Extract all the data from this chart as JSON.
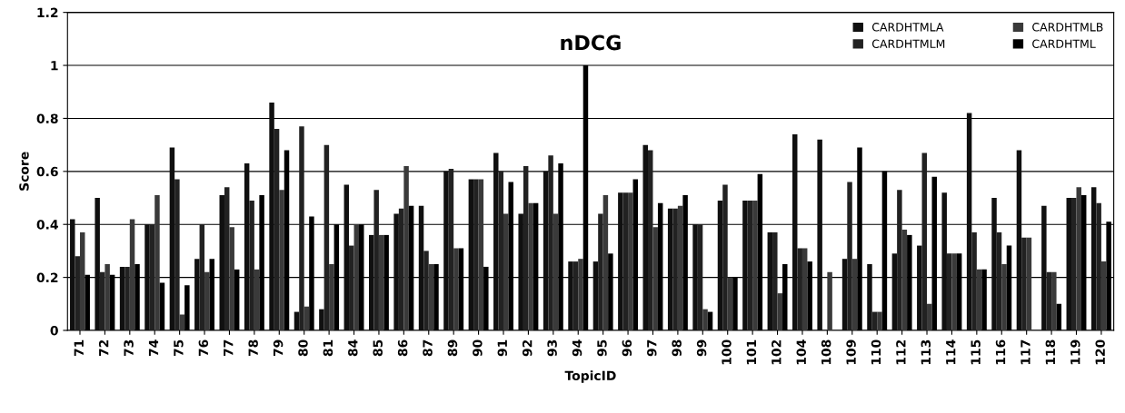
{
  "chart_data": {
    "type": "bar",
    "title": "nDCG",
    "xlabel": "TopicID",
    "ylabel": "Score",
    "categories": [
      "71",
      "72",
      "73",
      "74",
      "75",
      "76",
      "77",
      "78",
      "79",
      "80",
      "81",
      "84",
      "85",
      "86",
      "87",
      "89",
      "90",
      "91",
      "92",
      "93",
      "94",
      "95",
      "96",
      "97",
      "98",
      "99",
      "100",
      "101",
      "102",
      "104",
      "108",
      "109",
      "110",
      "112",
      "113",
      "114",
      "115",
      "116",
      "117",
      "118",
      "119",
      "120"
    ],
    "series": [
      {
        "name": "CARDHTMLA",
        "color": "#101010",
        "values": [
          0.42,
          0.5,
          0.24,
          0.4,
          0.69,
          0.27,
          0.51,
          0.63,
          0.86,
          0.07,
          0.08,
          0.55,
          0.36,
          0.44,
          0.47,
          0.6,
          0.57,
          0.67,
          0.44,
          0.6,
          0.26,
          0.26,
          0.52,
          0.7,
          0.46,
          0.4,
          0.49,
          0.49,
          0.37,
          0.74,
          0.72,
          0.27,
          0.25,
          0.29,
          0.32,
          0.52,
          0.82,
          0.5,
          0.68,
          0.47,
          0.5,
          0.54
        ]
      },
      {
        "name": "CARDHTMLM",
        "color": "#222222",
        "values": [
          0.28,
          0.22,
          0.24,
          0.4,
          0.57,
          0.4,
          0.54,
          0.49,
          0.76,
          0.77,
          0.7,
          0.32,
          0.53,
          0.46,
          0.3,
          0.61,
          0.57,
          0.6,
          0.62,
          0.66,
          0.26,
          0.44,
          0.52,
          0.68,
          0.46,
          0.4,
          0.55,
          0.49,
          0.37,
          0.31,
          0.0,
          0.56,
          0.07,
          0.53,
          0.67,
          0.29,
          0.37,
          0.37,
          0.35,
          0.22,
          0.5,
          0.48
        ]
      },
      {
        "name": "CARDHTMLB",
        "color": "#3a3a3a",
        "values": [
          0.37,
          0.25,
          0.42,
          0.51,
          0.06,
          0.22,
          0.39,
          0.23,
          0.53,
          0.09,
          0.25,
          0.4,
          0.36,
          0.62,
          0.25,
          0.31,
          0.57,
          0.44,
          0.48,
          0.44,
          0.27,
          0.51,
          0.52,
          0.39,
          0.47,
          0.08,
          0.2,
          0.49,
          0.14,
          0.31,
          0.22,
          0.27,
          0.07,
          0.38,
          0.1,
          0.29,
          0.23,
          0.25,
          0.35,
          0.22,
          0.54,
          0.26
        ]
      },
      {
        "name": "CARDHTML",
        "color": "#000000",
        "values": [
          0.21,
          0.21,
          0.25,
          0.18,
          0.17,
          0.27,
          0.23,
          0.51,
          0.68,
          0.43,
          0.4,
          0.4,
          0.36,
          0.47,
          0.25,
          0.31,
          0.24,
          0.56,
          0.48,
          0.63,
          1.0,
          0.29,
          0.57,
          0.48,
          0.51,
          0.07,
          0.2,
          0.59,
          0.25,
          0.26,
          0.0,
          0.69,
          0.6,
          0.36,
          0.58,
          0.29,
          0.23,
          0.32,
          0.0,
          0.1,
          0.51,
          0.41
        ]
      }
    ],
    "ylim": [
      0,
      1.2
    ],
    "yticks": [
      0,
      0.2,
      0.4,
      0.6,
      0.8,
      1,
      1.2
    ],
    "grid": "y",
    "legend": "top right"
  }
}
